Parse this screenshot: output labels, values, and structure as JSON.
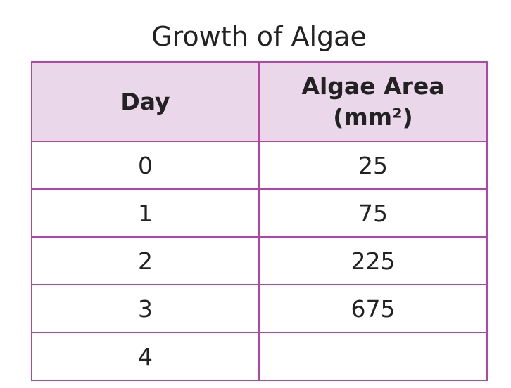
{
  "chart_data": {
    "type": "table",
    "title": "Growth of Algae",
    "columns": [
      {
        "name": "Day",
        "unit": ""
      },
      {
        "name": "Algae Area",
        "unit": "(mm²)"
      }
    ],
    "rows": [
      {
        "day": "0",
        "area": "25"
      },
      {
        "day": "1",
        "area": "75"
      },
      {
        "day": "2",
        "area": "225"
      },
      {
        "day": "3",
        "area": "675"
      },
      {
        "day": "4",
        "area": ""
      }
    ],
    "colors": {
      "header_fill": "#ead7ea",
      "border": "#b246a6"
    }
  }
}
